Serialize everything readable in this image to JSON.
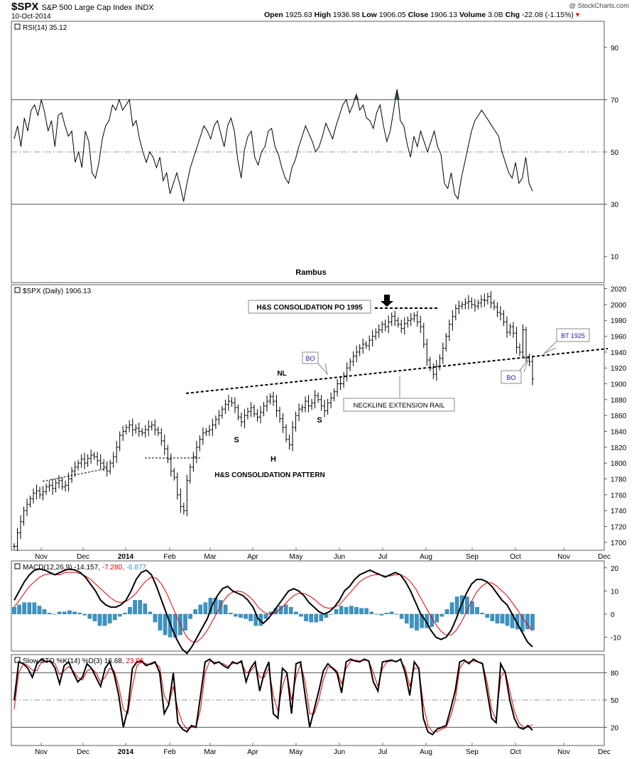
{
  "header": {
    "symbol": "$SPX",
    "name": "S&P 500 Large Cap Index",
    "exchange": "INDX",
    "date": "10-Oct-2014",
    "open_label": "Open",
    "open": "1925.63",
    "high_label": "High",
    "high": "1936.98",
    "low_label": "Low",
    "low": "1906.05",
    "close_label": "Close",
    "close": "1906.13",
    "volume_label": "Volume",
    "volume": "3.0B",
    "chg_label": "Chg",
    "chg": "-22.08 (-1.15%)",
    "chg_arrow": "▾",
    "credit": "@ StockCharts.com"
  },
  "colors": {
    "price": "#000000",
    "macd_signal": "#e00000",
    "macd_hist": "#3a94c4",
    "sto_d": "#e00000",
    "rsi_fill": "#4d7a4d",
    "grid": "#7a7a7a"
  },
  "chart_data": [
    {
      "type": "line",
      "title": "RSI(14) 35.12",
      "ylim": [
        0,
        100
      ],
      "y_ticks": [
        "90",
        "70",
        "50",
        "30",
        "10"
      ],
      "annotation": "Rambus",
      "series": [
        {
          "name": "RSI(14)",
          "values": [
            55,
            60,
            52,
            63,
            58,
            66,
            68,
            64,
            70,
            65,
            58,
            62,
            52,
            64,
            65,
            60,
            56,
            58,
            46,
            50,
            44,
            58,
            54,
            42,
            40,
            46,
            55,
            60,
            62,
            68,
            66,
            70,
            66,
            68,
            70,
            60,
            62,
            55,
            50,
            46,
            50,
            48,
            44,
            48,
            39,
            42,
            34,
            38,
            42,
            37,
            31,
            38,
            44,
            48,
            52,
            56,
            60,
            58,
            55,
            60,
            62,
            57,
            52,
            60,
            63,
            58,
            47,
            40,
            51,
            56,
            58,
            48,
            45,
            50,
            52,
            58,
            59,
            52,
            49,
            44,
            40,
            38,
            44,
            47,
            52,
            56,
            60,
            57,
            54,
            50,
            52,
            56,
            61,
            58,
            55,
            60,
            64,
            68,
            70,
            65,
            68,
            72,
            66,
            68,
            63,
            62,
            59,
            65,
            68,
            60,
            54,
            58,
            66,
            74,
            62,
            60,
            53,
            48,
            56,
            52,
            58,
            54,
            50,
            54,
            58,
            52,
            49,
            38,
            36,
            42,
            34,
            32,
            40,
            46,
            52,
            58,
            62,
            64,
            66,
            64,
            62,
            60,
            58,
            56,
            50,
            46,
            42,
            40,
            46,
            38,
            40,
            48,
            38,
            35
          ]
        }
      ],
      "x_ticks": [
        "Nov",
        "Dec",
        "2014",
        "Feb",
        "Mar",
        "Apr",
        "May",
        "Jun",
        "Jul",
        "Aug",
        "Sep",
        "Oct",
        "Nov",
        "Dec"
      ]
    },
    {
      "type": "line",
      "title": "$SPX (Daily) 1906.13",
      "ylim": [
        1690,
        2025
      ],
      "y_ticks": [
        "2020",
        "2000",
        "1980",
        "1960",
        "1940",
        "1920",
        "1900",
        "1880",
        "1860",
        "1840",
        "1820",
        "1800",
        "1780",
        "1760",
        "1740",
        "1720",
        "1700"
      ],
      "series": [
        {
          "name": "$SPX (Daily)",
          "values": [
            1695,
            1712,
            1726,
            1740,
            1748,
            1755,
            1762,
            1765,
            1760,
            1764,
            1770,
            1772,
            1768,
            1775,
            1778,
            1770,
            1772,
            1780,
            1790,
            1795,
            1800,
            1805,
            1800,
            1806,
            1810,
            1808,
            1803,
            1800,
            1795,
            1790,
            1800,
            1808,
            1820,
            1835,
            1840,
            1845,
            1848,
            1842,
            1844,
            1840,
            1838,
            1842,
            1846,
            1848,
            1842,
            1838,
            1828,
            1818,
            1805,
            1790,
            1782,
            1760,
            1745,
            1740,
            1778,
            1795,
            1808,
            1820,
            1830,
            1838,
            1840,
            1842,
            1848,
            1855,
            1860,
            1868,
            1874,
            1878,
            1876,
            1870,
            1858,
            1852,
            1860,
            1865,
            1870,
            1862,
            1858,
            1864,
            1872,
            1878,
            1884,
            1878,
            1866,
            1856,
            1845,
            1830,
            1823,
            1845,
            1860,
            1868,
            1870,
            1878,
            1872,
            1876,
            1885,
            1880,
            1872,
            1866,
            1876,
            1882,
            1890,
            1900,
            1900,
            1910,
            1920,
            1928,
            1935,
            1940,
            1945,
            1950,
            1948,
            1955,
            1960,
            1965,
            1968,
            1975,
            1972,
            1978,
            1985,
            1980,
            1975,
            1970,
            1976,
            1980,
            1982,
            1986,
            1978,
            1972,
            1950,
            1930,
            1920,
            1912,
            1922,
            1932,
            1945,
            1960,
            1975,
            1985,
            1995,
            1998,
            2000,
            2002,
            2004,
            2000,
            1998,
            2002,
            2006,
            2005,
            2010,
            2002,
            1997,
            1990,
            1988,
            1978,
            1965,
            1972,
            1964,
            1946,
            1940,
            1968,
            1932,
            1928,
            1906
          ]
        }
      ],
      "annotations": [
        {
          "text": "H&S CONSOLIDATION PO 1995",
          "boxed": true
        },
        {
          "text": "NL"
        },
        {
          "text": "BO",
          "boxed": true
        },
        {
          "text": "BO",
          "boxed": true
        },
        {
          "text": "BT 1925",
          "boxed": true
        },
        {
          "text": "NECKLINE EXTENSION RAIL",
          "boxed": true
        },
        {
          "text": "S"
        },
        {
          "text": "H"
        },
        {
          "text": "S"
        },
        {
          "text": "H&S CONSOLIDATION PATTERN"
        }
      ]
    },
    {
      "type": "line",
      "title_parts": [
        {
          "text": "MACD(12,26,9) -14.157,",
          "color": "#000000"
        },
        {
          "text": "-7.280,",
          "color": "#e00000"
        },
        {
          "text": "-6.877",
          "color": "#3a94c4"
        }
      ],
      "ylim": [
        -16,
        23
      ],
      "y_ticks": [
        "20",
        "10",
        "0",
        "-10"
      ],
      "series": [
        {
          "name": "MACD",
          "values": [
            6,
            10,
            14,
            17,
            19,
            19.5,
            19,
            18,
            17,
            18,
            19,
            19.5,
            19,
            18,
            16,
            13,
            10,
            6,
            4,
            3,
            3,
            4,
            6,
            10,
            15,
            18,
            19,
            17,
            12,
            6,
            0,
            -6,
            -11,
            -15,
            -17,
            -14,
            -10,
            -6,
            -2,
            4,
            8,
            11,
            12,
            10,
            9,
            8,
            6,
            3,
            -2,
            -4,
            -2,
            1,
            4,
            7,
            10,
            11,
            10,
            8,
            5,
            3,
            1,
            0,
            1,
            3,
            6,
            10,
            12,
            15,
            17,
            18,
            19,
            18,
            17,
            16,
            17,
            18,
            17,
            14,
            10,
            5,
            0,
            -3,
            -7,
            -10,
            -11,
            -10,
            -7,
            -2,
            4,
            9,
            13,
            15,
            15,
            14,
            12,
            9,
            6,
            4,
            0,
            -4,
            -8,
            -12,
            -14.157
          ]
        },
        {
          "name": "signal",
          "values": [
            3,
            6,
            9,
            12,
            14,
            16,
            17,
            17.5,
            17,
            17,
            18,
            18,
            18,
            17.5,
            16.5,
            15,
            13,
            11,
            9,
            7,
            5.5,
            5,
            5.5,
            7,
            9,
            12,
            14.5,
            16,
            15.5,
            13,
            9,
            4,
            -1,
            -6,
            -10,
            -12,
            -12,
            -10,
            -7,
            -3,
            1,
            5,
            8,
            9.5,
            10,
            9.5,
            8,
            6,
            3,
            1,
            0,
            0,
            1.5,
            3.5,
            6,
            8,
            9,
            9,
            8,
            6.5,
            4.5,
            3,
            2.5,
            3,
            4,
            6.5,
            9,
            11.5,
            14,
            15.5,
            16.5,
            17,
            17,
            16.5,
            16.5,
            17,
            17,
            16,
            14,
            11,
            7,
            3,
            -1,
            -4.5,
            -7.5,
            -9,
            -9,
            -7,
            -3.5,
            1,
            5.5,
            9.5,
            12,
            13.5,
            13.5,
            12,
            10,
            8,
            5,
            2,
            -1.5,
            -4.5,
            -7.28
          ]
        },
        {
          "name": "histogram",
          "values": [
            3,
            4,
            5,
            5,
            5,
            3.5,
            2,
            0.5,
            0,
            1,
            1,
            1.5,
            1,
            0.5,
            -0.5,
            -2,
            -3,
            -5,
            -5,
            -4,
            -2.5,
            -1,
            0.5,
            3,
            6,
            6,
            4.5,
            1,
            -3.5,
            -7,
            -9,
            -10,
            -10,
            -9,
            -7,
            -2,
            2,
            4,
            5,
            7,
            7,
            6,
            4,
            0.5,
            -1,
            -1.5,
            -2,
            -3,
            -5,
            -5,
            -2,
            1,
            2.5,
            3.5,
            4,
            3,
            1,
            -1,
            -3,
            -3.5,
            -3.5,
            -3,
            -1.5,
            0,
            2,
            3.5,
            3,
            3.5,
            3,
            2.5,
            2.5,
            1,
            0,
            -0.5,
            0.5,
            1,
            0,
            -2,
            -4,
            -6,
            -7,
            -6,
            -6,
            -5.5,
            -3.5,
            -1,
            2,
            5,
            7.5,
            8,
            7.5,
            5.5,
            3,
            0.5,
            -1.5,
            -3,
            -4,
            -4,
            -5,
            -6,
            -6.5,
            -7.5,
            -6.5,
            -6.877
          ]
        }
      ]
    },
    {
      "type": "line",
      "title_parts": [
        {
          "text": "Slow STO %K(14) %D(3) 16.68,",
          "color": "#000000"
        },
        {
          "text": "23.05",
          "color": "#e00000"
        }
      ],
      "ylim": [
        0,
        100
      ],
      "y_ticks": [
        "80",
        "50",
        "20"
      ],
      "series": [
        {
          "name": "%K",
          "values": [
            50,
            92,
            90,
            85,
            75,
            90,
            95,
            92,
            93,
            85,
            68,
            88,
            92,
            80,
            70,
            75,
            90,
            85,
            75,
            65,
            85,
            92,
            78,
            55,
            20,
            40,
            85,
            92,
            93,
            88,
            90,
            92,
            80,
            35,
            45,
            80,
            25,
            18,
            15,
            22,
            20,
            55,
            92,
            95,
            90,
            92,
            88,
            85,
            92,
            90,
            93,
            70,
            85,
            92,
            60,
            80,
            92,
            35,
            30,
            85,
            80,
            35,
            90,
            92,
            55,
            20,
            40,
            60,
            82,
            90,
            85,
            80,
            58,
            92,
            95,
            93,
            92,
            95,
            93,
            70,
            60,
            92,
            93,
            94,
            92,
            95,
            80,
            55,
            92,
            85,
            30,
            15,
            12,
            18,
            20,
            22,
            40,
            60,
            92,
            94,
            90,
            95,
            92,
            90,
            60,
            30,
            25,
            90,
            80,
            50,
            30,
            20,
            18,
            22,
            16.68
          ]
        },
        {
          "name": "%D",
          "values": [
            40,
            80,
            90,
            88,
            83,
            82,
            92,
            93,
            93,
            90,
            78,
            82,
            87,
            82,
            75,
            72,
            82,
            85,
            80,
            70,
            75,
            85,
            82,
            65,
            40,
            35,
            65,
            88,
            92,
            90,
            89,
            91,
            86,
            55,
            45,
            65,
            40,
            25,
            18,
            20,
            20,
            40,
            80,
            93,
            92,
            91,
            90,
            87,
            90,
            91,
            91,
            80,
            82,
            88,
            75,
            75,
            85,
            55,
            38,
            65,
            80,
            50,
            75,
            90,
            70,
            35,
            35,
            50,
            72,
            86,
            86,
            82,
            68,
            85,
            93,
            94,
            93,
            94,
            93,
            80,
            65,
            85,
            92,
            93,
            93,
            94,
            85,
            65,
            85,
            85,
            45,
            22,
            15,
            15,
            18,
            20,
            32,
            50,
            85,
            92,
            92,
            93,
            92,
            91,
            70,
            40,
            28,
            75,
            82,
            60,
            38,
            25,
            20,
            20,
            23.05
          ]
        }
      ]
    }
  ]
}
